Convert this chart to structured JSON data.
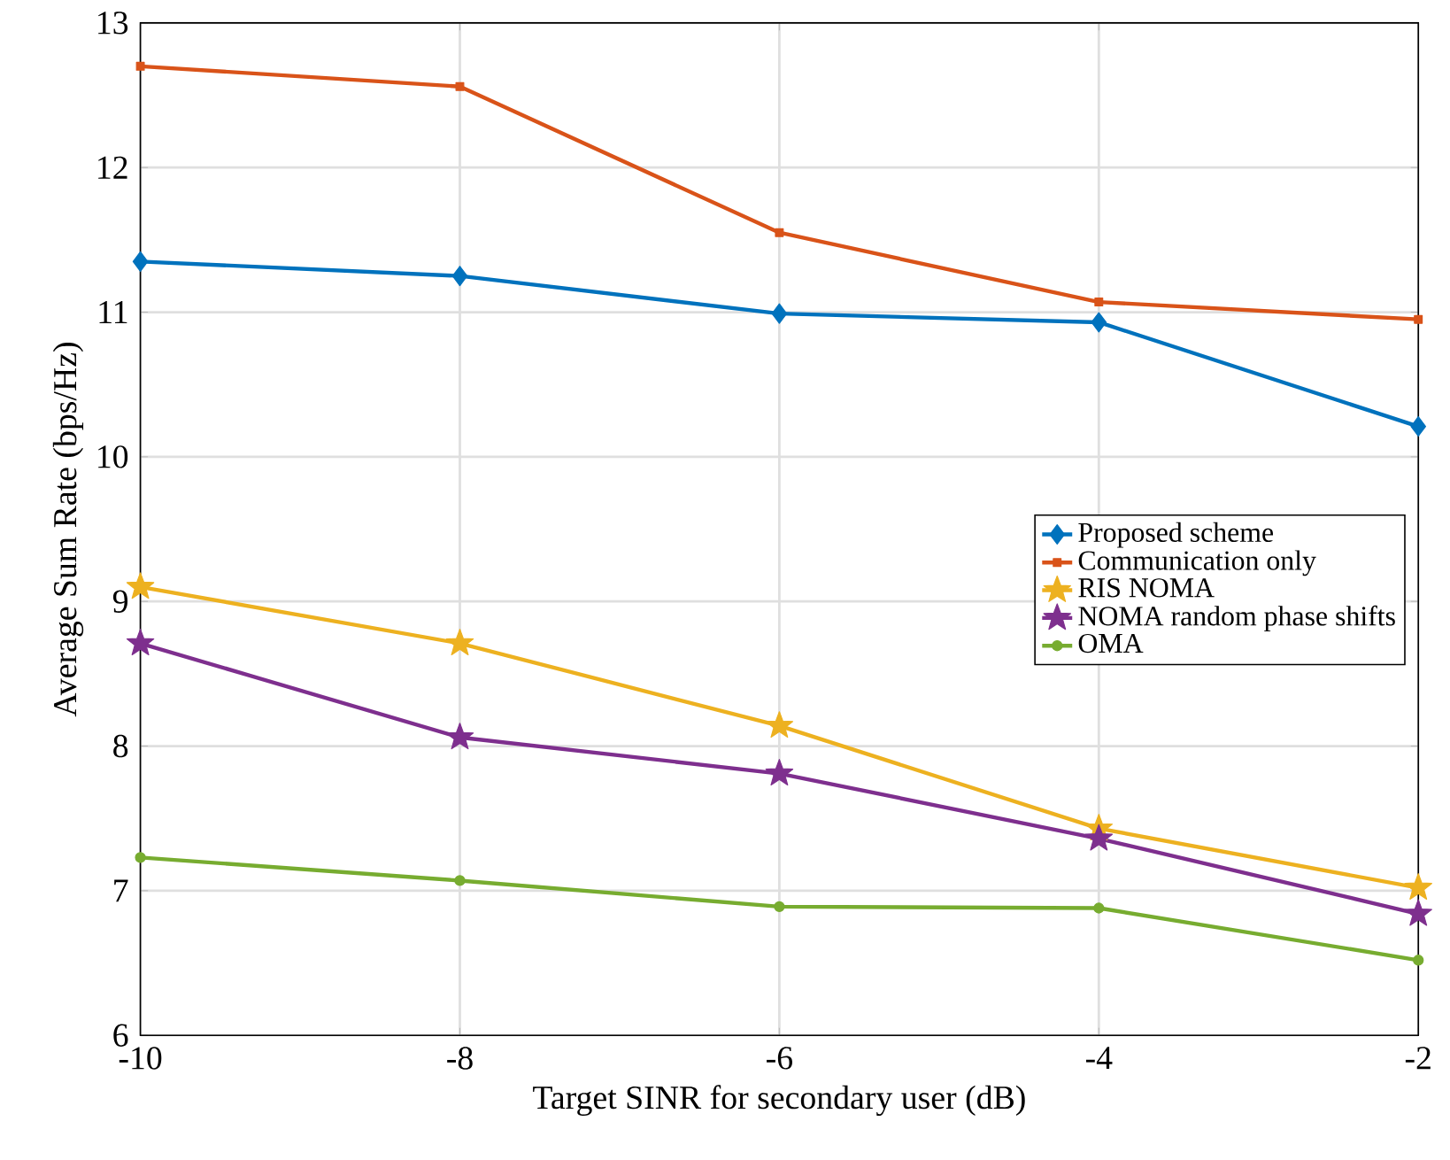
{
  "chart_data": {
    "type": "line",
    "xlabel": "Target SINR for secondary user (dB)",
    "ylabel": "Average Sum Rate (bps/Hz)",
    "x": [
      -10,
      -8,
      -6,
      -4,
      -2
    ],
    "series": [
      {
        "name": "Proposed scheme",
        "color": "#0072bd",
        "marker": "diamond",
        "values": [
          11.35,
          11.25,
          10.99,
          10.93,
          10.21
        ]
      },
      {
        "name": "Communication only",
        "color": "#d95319",
        "marker": "square",
        "values": [
          12.7,
          12.56,
          11.55,
          11.07,
          10.95
        ]
      },
      {
        "name": "RIS NOMA",
        "color": "#edb120",
        "marker": "star",
        "values": [
          9.1,
          8.71,
          8.14,
          7.43,
          7.02
        ]
      },
      {
        "name": "NOMA random phase shifts",
        "color": "#7e2f8e",
        "marker": "star",
        "values": [
          8.71,
          8.06,
          7.81,
          7.36,
          6.84
        ]
      },
      {
        "name": "OMA",
        "color": "#77ac30",
        "marker": "circle",
        "values": [
          7.23,
          7.07,
          6.89,
          6.88,
          6.52
        ]
      }
    ],
    "xlim": [
      -10,
      -2
    ],
    "ylim": [
      6,
      13
    ],
    "xticks": [
      -10,
      -8,
      -6,
      -4,
      -2
    ],
    "yticks": [
      6,
      7,
      8,
      9,
      10,
      11,
      12,
      13
    ],
    "grid": true,
    "legend": "right",
    "line_style": "solid"
  }
}
